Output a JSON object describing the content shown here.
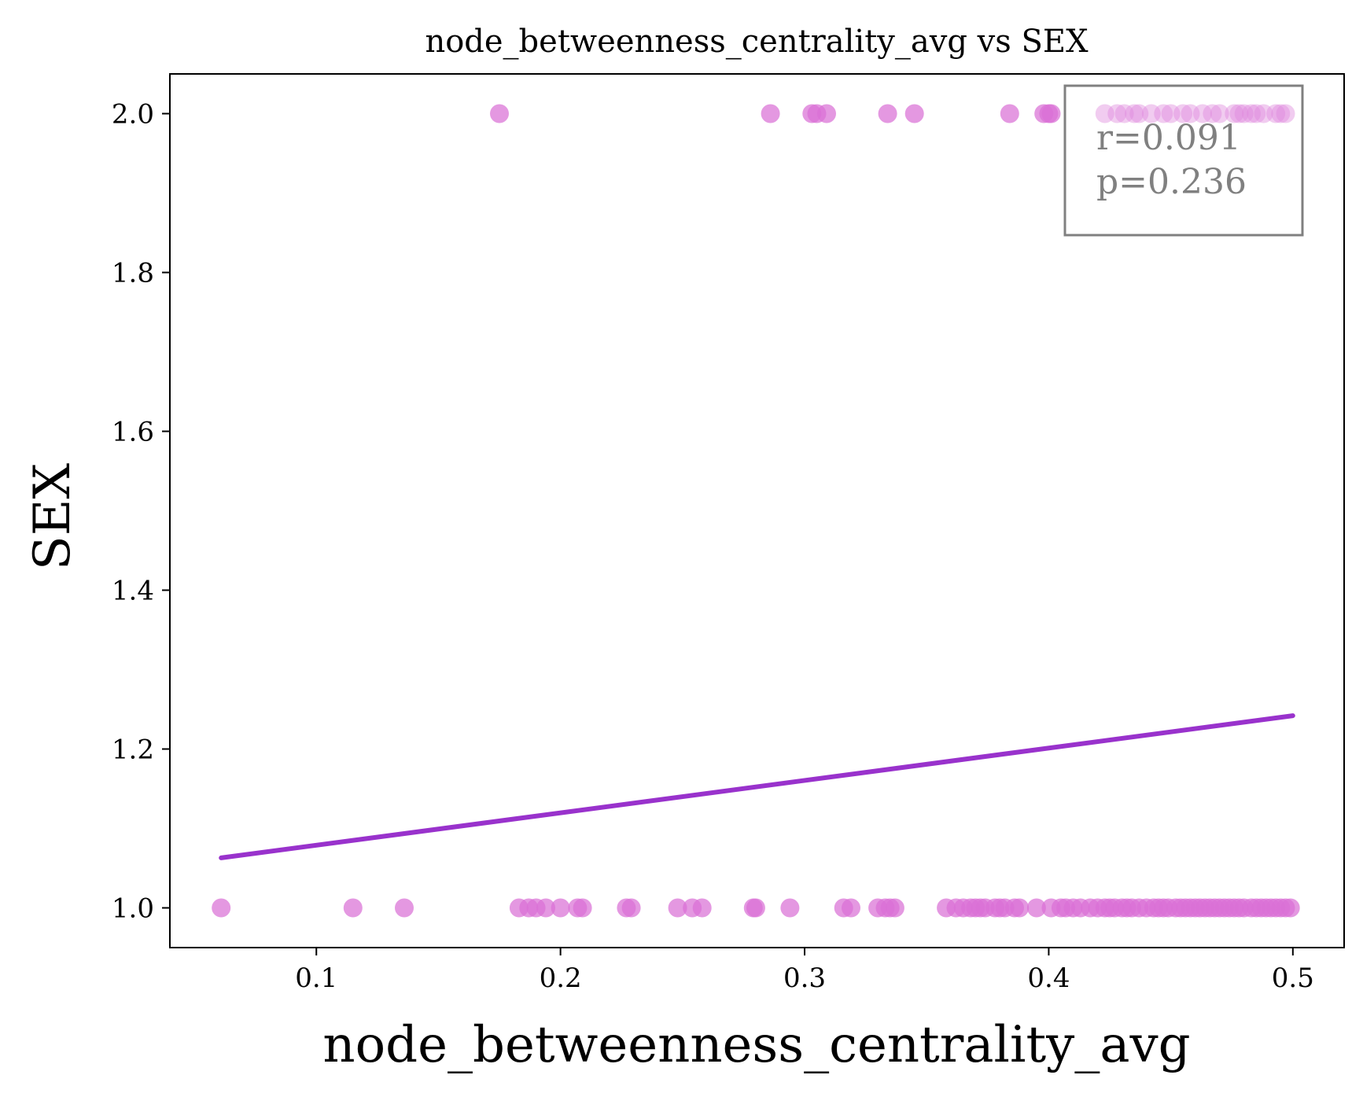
{
  "chart_data": {
    "type": "scatter",
    "title": "node_betweenness_centrality_avg vs SEX",
    "xlabel": "node_betweenness_centrality_avg",
    "ylabel": "SEX",
    "xlim": [
      0.04,
      0.521
    ],
    "ylim": [
      0.95,
      2.05
    ],
    "x_ticks": [
      0.1,
      0.2,
      0.3,
      0.4,
      0.5
    ],
    "x_tick_labels": [
      "0.1",
      "0.2",
      "0.3",
      "0.4",
      "0.5"
    ],
    "y_ticks": [
      1.0,
      1.2,
      1.4,
      1.6,
      1.8,
      2.0
    ],
    "y_tick_labels": [
      "1.0",
      "1.2",
      "1.4",
      "1.6",
      "1.8",
      "2.0"
    ],
    "grid": false,
    "point_color": "#da70d6",
    "line_color": "#9932cc",
    "annotation": {
      "r_text": "r=0.091",
      "p_text": "p=0.236",
      "placement": "top-right",
      "text_color": "#808080"
    },
    "series": [
      {
        "points": [
          [
            0.175,
            2.0
          ],
          [
            0.286,
            2.0
          ],
          [
            0.303,
            2.0
          ],
          [
            0.305,
            2.0
          ],
          [
            0.309,
            2.0
          ],
          [
            0.334,
            2.0
          ],
          [
            0.345,
            2.0
          ],
          [
            0.384,
            2.0
          ],
          [
            0.398,
            2.0
          ],
          [
            0.4,
            2.0
          ],
          [
            0.401,
            2.0
          ],
          [
            0.423,
            2.0
          ],
          [
            0.428,
            2.0
          ],
          [
            0.431,
            2.0
          ],
          [
            0.435,
            2.0
          ],
          [
            0.437,
            2.0
          ],
          [
            0.442,
            2.0
          ],
          [
            0.447,
            2.0
          ],
          [
            0.45,
            2.0
          ],
          [
            0.455,
            2.0
          ],
          [
            0.458,
            2.0
          ],
          [
            0.463,
            2.0
          ],
          [
            0.467,
            2.0
          ],
          [
            0.47,
            2.0
          ],
          [
            0.476,
            2.0
          ],
          [
            0.478,
            2.0
          ],
          [
            0.48,
            2.0
          ],
          [
            0.483,
            2.0
          ],
          [
            0.485,
            2.0
          ],
          [
            0.488,
            2.0
          ],
          [
            0.493,
            2.0
          ],
          [
            0.495,
            2.0
          ],
          [
            0.497,
            2.0
          ],
          [
            0.061,
            1.0
          ],
          [
            0.115,
            1.0
          ],
          [
            0.136,
            1.0
          ],
          [
            0.183,
            1.0
          ],
          [
            0.187,
            1.0
          ],
          [
            0.19,
            1.0
          ],
          [
            0.194,
            1.0
          ],
          [
            0.2,
            1.0
          ],
          [
            0.207,
            1.0
          ],
          [
            0.209,
            1.0
          ],
          [
            0.227,
            1.0
          ],
          [
            0.229,
            1.0
          ],
          [
            0.248,
            1.0
          ],
          [
            0.254,
            1.0
          ],
          [
            0.258,
            1.0
          ],
          [
            0.279,
            1.0
          ],
          [
            0.28,
            1.0
          ],
          [
            0.294,
            1.0
          ],
          [
            0.316,
            1.0
          ],
          [
            0.319,
            1.0
          ],
          [
            0.33,
            1.0
          ],
          [
            0.333,
            1.0
          ],
          [
            0.335,
            1.0
          ],
          [
            0.337,
            1.0
          ],
          [
            0.358,
            1.0
          ],
          [
            0.362,
            1.0
          ],
          [
            0.365,
            1.0
          ],
          [
            0.368,
            1.0
          ],
          [
            0.37,
            1.0
          ],
          [
            0.372,
            1.0
          ],
          [
            0.374,
            1.0
          ],
          [
            0.378,
            1.0
          ],
          [
            0.38,
            1.0
          ],
          [
            0.382,
            1.0
          ],
          [
            0.386,
            1.0
          ],
          [
            0.388,
            1.0
          ],
          [
            0.395,
            1.0
          ],
          [
            0.401,
            1.0
          ],
          [
            0.405,
            1.0
          ],
          [
            0.407,
            1.0
          ],
          [
            0.41,
            1.0
          ],
          [
            0.413,
            1.0
          ],
          [
            0.417,
            1.0
          ],
          [
            0.42,
            1.0
          ],
          [
            0.423,
            1.0
          ],
          [
            0.425,
            1.0
          ],
          [
            0.427,
            1.0
          ],
          [
            0.43,
            1.0
          ],
          [
            0.432,
            1.0
          ],
          [
            0.434,
            1.0
          ],
          [
            0.437,
            1.0
          ],
          [
            0.44,
            1.0
          ],
          [
            0.443,
            1.0
          ],
          [
            0.445,
            1.0
          ],
          [
            0.447,
            1.0
          ],
          [
            0.449,
            1.0
          ],
          [
            0.452,
            1.0
          ],
          [
            0.454,
            1.0
          ],
          [
            0.456,
            1.0
          ],
          [
            0.458,
            1.0
          ],
          [
            0.46,
            1.0
          ],
          [
            0.462,
            1.0
          ],
          [
            0.464,
            1.0
          ],
          [
            0.466,
            1.0
          ],
          [
            0.468,
            1.0
          ],
          [
            0.47,
            1.0
          ],
          [
            0.472,
            1.0
          ],
          [
            0.474,
            1.0
          ],
          [
            0.476,
            1.0
          ],
          [
            0.478,
            1.0
          ],
          [
            0.48,
            1.0
          ],
          [
            0.483,
            1.0
          ],
          [
            0.485,
            1.0
          ],
          [
            0.487,
            1.0
          ],
          [
            0.489,
            1.0
          ],
          [
            0.491,
            1.0
          ],
          [
            0.493,
            1.0
          ],
          [
            0.495,
            1.0
          ],
          [
            0.497,
            1.0
          ],
          [
            0.499,
            1.0
          ]
        ]
      }
    ],
    "regression_line": {
      "x": [
        0.061,
        0.5
      ],
      "y": [
        1.063,
        1.242
      ]
    }
  }
}
